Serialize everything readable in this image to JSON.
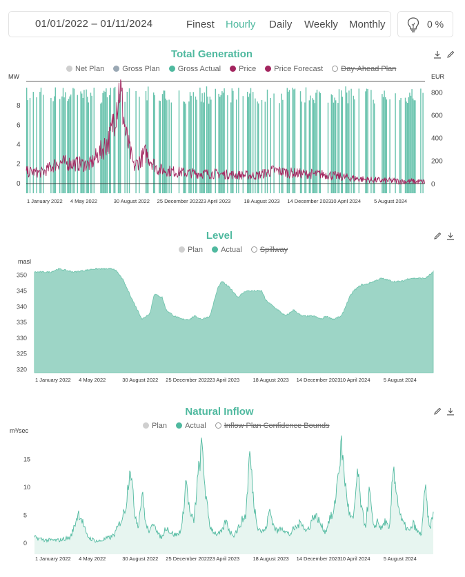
{
  "toolbar": {
    "date_range": "01/01/2022 – 01/11/2024",
    "resolutions": [
      "Finest",
      "Hourly",
      "Daily",
      "Weekly",
      "Monthly"
    ],
    "active_resolution": "Hourly",
    "percent": "0 %",
    "accent": "#4fb99f"
  },
  "chart_data": [
    {
      "type": "bar+line",
      "title": "Total Generation",
      "left_unit": "MW",
      "right_unit": "EUR",
      "legend": [
        {
          "label": "Net Plan",
          "color": "#cfcfcf",
          "active": true
        },
        {
          "label": "Gross Plan",
          "color": "#9aa8b4",
          "active": true
        },
        {
          "label": "Gross Actual",
          "color": "#4fb99f",
          "active": true
        },
        {
          "label": "Price",
          "color": "#a3255f",
          "active": true
        },
        {
          "label": "Price Forecast",
          "color": "#a3255f",
          "active": true
        },
        {
          "label": "Day-Ahead Plan",
          "color": "#ffffff",
          "active": false
        }
      ],
      "y_left": {
        "min": -1,
        "max": 10.5,
        "ticks": [
          0,
          2,
          4,
          6,
          8
        ]
      },
      "y_right": {
        "min": -80,
        "max": 900,
        "ticks": [
          0,
          200,
          400,
          600,
          800
        ]
      },
      "x_labels": [
        "1 January 2022",
        "4 May 2022",
        "30 August 2022",
        "25 December 2022",
        "23 April 2023",
        "18 August 2023",
        "14 December 2023",
        "10 April 2024",
        "5 August 2024"
      ],
      "x_range": [
        "2022-01-01",
        "2024-11-01"
      ],
      "generation_capacity_mw": 10,
      "price_eur": {
        "x": [
          0,
          0.04,
          0.08,
          0.12,
          0.16,
          0.19,
          0.21,
          0.22,
          0.235,
          0.25,
          0.27,
          0.3,
          0.33,
          0.37,
          0.42,
          0.48,
          0.53,
          0.58,
          0.62,
          0.66,
          0.7,
          0.75,
          0.8,
          0.85,
          0.9,
          0.95,
          1.0
        ],
        "y": [
          110,
          100,
          190,
          180,
          170,
          300,
          400,
          580,
          860,
          430,
          150,
          270,
          130,
          110,
          95,
          90,
          80,
          75,
          120,
          100,
          90,
          85,
          60,
          40,
          30,
          25,
          20
        ]
      }
    },
    {
      "type": "area",
      "title": "Level",
      "unit": "masl",
      "legend": [
        {
          "label": "Plan",
          "color": "#cfcfcf",
          "active": true
        },
        {
          "label": "Actual",
          "color": "#4fb99f",
          "active": true
        },
        {
          "label": "Spillway",
          "color": "#ffffff",
          "active": false
        }
      ],
      "y": {
        "min": 319,
        "max": 353,
        "ticks": [
          320,
          325,
          330,
          335,
          340,
          345,
          350
        ]
      },
      "x_labels": [
        "1 January 2022",
        "4 May 2022",
        "30 August 2022",
        "25 December 2022",
        "23 April 2023",
        "18 August 2023",
        "14 December 2023",
        "10 April 2024",
        "5 August 2024"
      ],
      "series": {
        "x": [
          0,
          0.04,
          0.06,
          0.1,
          0.15,
          0.2,
          0.22,
          0.25,
          0.27,
          0.29,
          0.3,
          0.32,
          0.33,
          0.35,
          0.37,
          0.39,
          0.4,
          0.42,
          0.44,
          0.46,
          0.47,
          0.49,
          0.51,
          0.53,
          0.55,
          0.57,
          0.58,
          0.6,
          0.63,
          0.65,
          0.67,
          0.7,
          0.72,
          0.73,
          0.75,
          0.77,
          0.79,
          0.8,
          0.82,
          0.83,
          0.85,
          0.87,
          0.9,
          0.92,
          0.94,
          0.96,
          0.98,
          1.0
        ],
        "y": [
          351,
          351,
          352,
          351,
          352,
          352,
          349,
          341,
          336,
          338,
          344,
          343,
          339,
          337,
          336,
          336,
          337,
          336,
          337,
          346,
          348,
          346,
          343,
          345,
          345,
          345,
          342,
          340,
          337,
          339,
          337,
          337,
          336,
          337,
          336,
          337,
          343,
          345,
          347,
          347,
          348,
          349,
          348,
          348,
          349,
          349,
          349,
          351
        ]
      }
    },
    {
      "type": "area",
      "title": "Natural Inflow",
      "unit": "m³/sec",
      "legend": [
        {
          "label": "Plan",
          "color": "#cfcfcf",
          "active": true
        },
        {
          "label": "Actual",
          "color": "#4fb99f",
          "active": true
        },
        {
          "label": "Inflow Plan Confidence Bounds",
          "color": "#ffffff",
          "active": false
        }
      ],
      "y": {
        "min": -2,
        "max": 19,
        "ticks": [
          0,
          5,
          10,
          15
        ]
      },
      "x_labels": [
        "1 January 2022",
        "4 May 2022",
        "30 August 2022",
        "25 December 2022",
        "23 April 2023",
        "18 August 2023",
        "14 December 2023",
        "10 April 2024",
        "5 August 2024"
      ],
      "series": {
        "x": [
          0,
          0.03,
          0.06,
          0.09,
          0.1,
          0.11,
          0.12,
          0.13,
          0.14,
          0.15,
          0.16,
          0.17,
          0.18,
          0.19,
          0.2,
          0.21,
          0.22,
          0.23,
          0.24,
          0.25,
          0.26,
          0.27,
          0.28,
          0.29,
          0.3,
          0.31,
          0.32,
          0.33,
          0.34,
          0.35,
          0.36,
          0.37,
          0.38,
          0.39,
          0.4,
          0.41,
          0.42,
          0.43,
          0.44,
          0.45,
          0.46,
          0.47,
          0.48,
          0.49,
          0.5,
          0.51,
          0.52,
          0.53,
          0.54,
          0.55,
          0.56,
          0.57,
          0.58,
          0.59,
          0.6,
          0.61,
          0.62,
          0.63,
          0.64,
          0.65,
          0.66,
          0.67,
          0.68,
          0.69,
          0.7,
          0.71,
          0.72,
          0.73,
          0.74,
          0.75,
          0.76,
          0.77,
          0.78,
          0.79,
          0.8,
          0.81,
          0.82,
          0.83,
          0.84,
          0.85,
          0.86,
          0.87,
          0.88,
          0.89,
          0.9,
          0.91,
          0.92,
          0.93,
          0.94,
          0.95,
          0.96,
          0.97,
          0.98,
          0.99,
          1.0
        ],
        "y": [
          1,
          0.5,
          0.5,
          1,
          3,
          5.5,
          4,
          1.5,
          0.8,
          0.5,
          0.3,
          0.5,
          0.8,
          1,
          1.5,
          3,
          4.5,
          7,
          14.5,
          6,
          3,
          9,
          3,
          2,
          4,
          1.5,
          1,
          3,
          2,
          1.5,
          1.5,
          3,
          11.5,
          5,
          4,
          12,
          17.5,
          8,
          3,
          2,
          1.5,
          2,
          4,
          2,
          1.5,
          2.5,
          4,
          5,
          16.5,
          7,
          3,
          2,
          2.5,
          6,
          3,
          2,
          3,
          2,
          1.5,
          2.5,
          3,
          4,
          2,
          3,
          5,
          4.5,
          3,
          2,
          4.5,
          5,
          11.5,
          17.5,
          10,
          5,
          4,
          13,
          6,
          3,
          9.5,
          2.5,
          4,
          2.5,
          4,
          2,
          14,
          8,
          4,
          3,
          2,
          3.5,
          2,
          1.5,
          10,
          2.5,
          5
        ]
      }
    }
  ]
}
